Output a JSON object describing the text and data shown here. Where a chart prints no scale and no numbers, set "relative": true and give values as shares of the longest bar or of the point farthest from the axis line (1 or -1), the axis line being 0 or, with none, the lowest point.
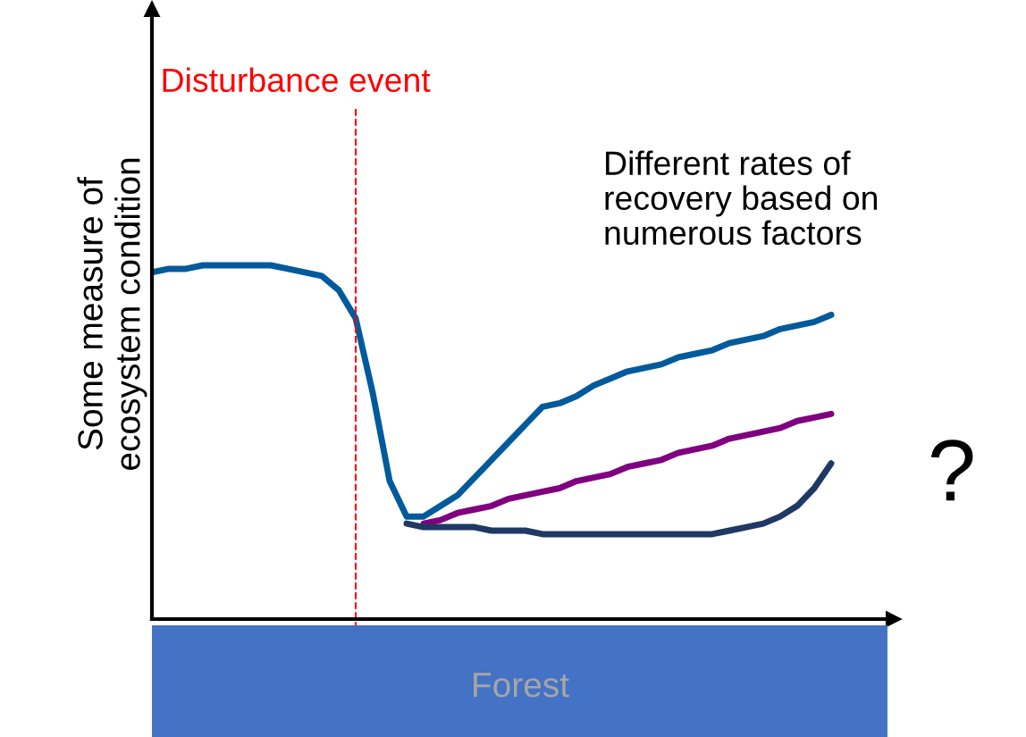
{
  "chart_data": {
    "type": "line",
    "relative": true,
    "ylabel": "Some measure of\necosystem condition",
    "categories": [
      null,
      null,
      null,
      null,
      null,
      null,
      null,
      null,
      null,
      null,
      null,
      null,
      null,
      null,
      null,
      null,
      null,
      null,
      null,
      null,
      null,
      null,
      null,
      null,
      null,
      null,
      null,
      null,
      null,
      null,
      null,
      null,
      null,
      null,
      null,
      null,
      null,
      null,
      null,
      null,
      null
    ],
    "series": [
      {
        "color": "#005a9c",
        "values": [
          0.98,
          0.99,
          0.99,
          1.0,
          1.0,
          1.0,
          1.0,
          1.0,
          0.99,
          0.98,
          0.97,
          0.93,
          0.85,
          0.64,
          0.39,
          0.29,
          0.29,
          0.32,
          0.35,
          0.4,
          0.45,
          0.5,
          0.55,
          0.6,
          0.61,
          0.63,
          0.66,
          0.68,
          0.7,
          0.71,
          0.72,
          0.74,
          0.75,
          0.76,
          0.78,
          0.79,
          0.8,
          0.82,
          0.83,
          0.84,
          0.86
        ]
      },
      {
        "color": "#800080",
        "values": [
          null,
          null,
          null,
          null,
          null,
          null,
          null,
          null,
          null,
          null,
          null,
          null,
          null,
          null,
          null,
          null,
          0.27,
          0.28,
          0.3,
          0.31,
          0.32,
          0.34,
          0.35,
          0.36,
          0.37,
          0.39,
          0.4,
          0.41,
          0.43,
          0.44,
          0.45,
          0.47,
          0.48,
          0.49,
          0.51,
          0.52,
          0.53,
          0.54,
          0.56,
          0.57,
          0.58
        ]
      },
      {
        "color": "#1f3864",
        "values": [
          null,
          null,
          null,
          null,
          null,
          null,
          null,
          null,
          null,
          null,
          null,
          null,
          null,
          null,
          null,
          0.27,
          0.26,
          0.26,
          0.26,
          0.26,
          0.25,
          0.25,
          0.25,
          0.24,
          0.24,
          0.24,
          0.24,
          0.24,
          0.24,
          0.24,
          0.24,
          0.24,
          0.24,
          0.24,
          0.25,
          0.26,
          0.27,
          0.29,
          0.32,
          0.37,
          0.44
        ]
      }
    ],
    "annotations": [
      "Different rates of\nrecovery based on\nnumerous factors",
      "?",
      "Forest",
      "Disturbance event"
    ],
    "legend": false,
    "marker": "none",
    "line_style": "solid"
  }
}
